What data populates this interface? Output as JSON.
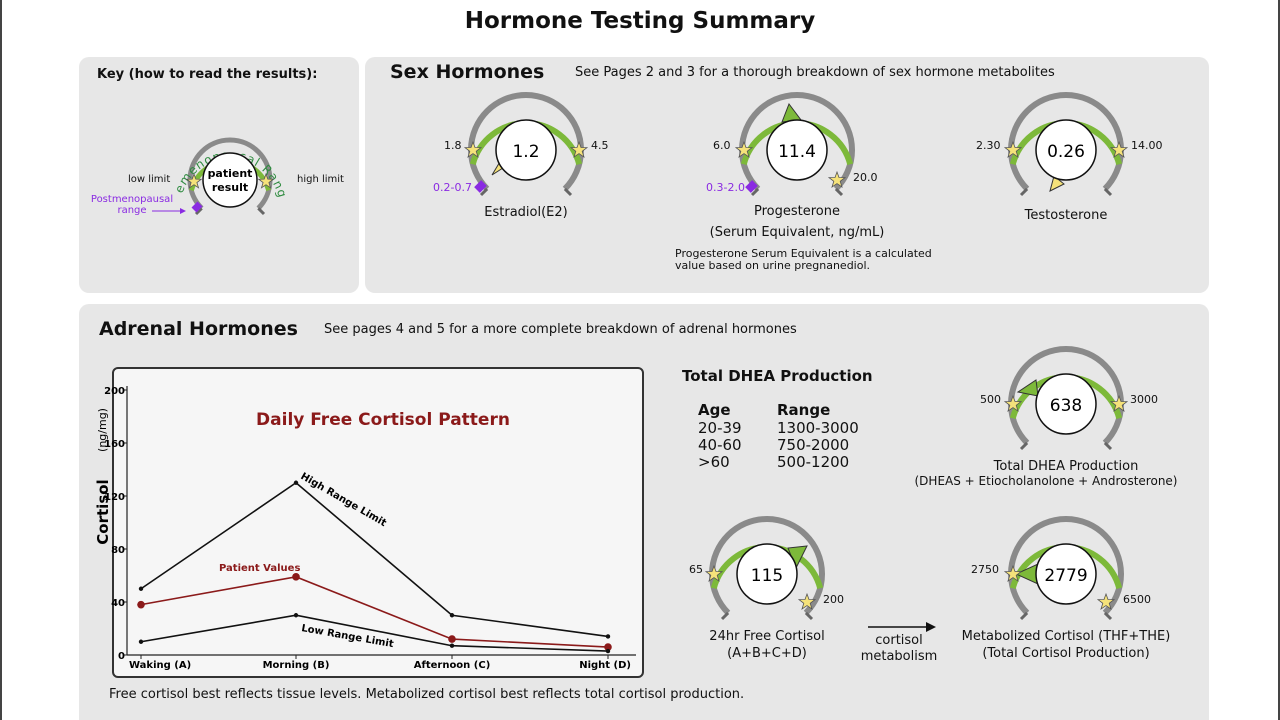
{
  "page": {
    "title": "Hormone Testing Summary"
  },
  "key": {
    "title": "Key (how to read the results):",
    "range_label": "Premenopausal Range",
    "center_line1": "patient",
    "center_line2": "result",
    "low_limit": "low limit",
    "high_limit": "high limit",
    "postmeno_line1": "Postmenopausal",
    "postmeno_line2": "range"
  },
  "sex": {
    "title": "Sex Hormones",
    "subtitle": "See Pages 2 and 3 for a thorough breakdown of sex hormone metabolites",
    "estradiol": {
      "value": "1.2",
      "low": "1.8",
      "high": "4.5",
      "postmeno": "0.2-0.7",
      "name": "Estradiol(E2)"
    },
    "progesterone": {
      "value": "11.4",
      "low": "6.0",
      "high": "20.0",
      "postmeno": "0.3-2.0",
      "name": "Progesterone",
      "unit": "(Serum Equivalent, ng/mL)",
      "note_line1": "Progesterone Serum Equivalent is a calculated",
      "note_line2": "value based on urine pregnanediol."
    },
    "testosterone": {
      "value": "0.26",
      "low": "2.30",
      "high": "14.00",
      "name": "Testosterone"
    }
  },
  "adrenal": {
    "title": "Adrenal Hormones",
    "subtitle": "See pages 4 and 5 for a more complete breakdown of adrenal hormones",
    "dhea_total": {
      "heading": "Total DHEA Production",
      "age_header": "Age",
      "range_header": "Range",
      "rows": [
        {
          "age": "20-39",
          "range": "1300-3000"
        },
        {
          "age": "40-60",
          "range": "750-2000"
        },
        {
          "age": ">60",
          "range": "500-1200"
        }
      ]
    },
    "dhea_gauge": {
      "value": "638",
      "low": "500",
      "high": "3000",
      "name": "Total DHEA Production",
      "sub": "(DHEAS + Etiocholanolone + Androsterone)"
    },
    "free_cortisol": {
      "value": "115",
      "low": "65",
      "high": "200",
      "name": "24hr Free Cortisol",
      "sub": "(A+B+C+D)"
    },
    "metabolism_line1": "cortisol",
    "metabolism_line2": "metabolism",
    "metab_cortisol": {
      "value": "2779",
      "low": "2750",
      "high": "6500",
      "name": "Metabolized Cortisol (THF+THE)",
      "sub": "(Total Cortisol Production)"
    },
    "footnote": "Free cortisol best reflects tissue levels. Metabolized cortisol best reflects total cortisol production."
  },
  "chart_data": {
    "type": "line",
    "title": "Daily Free Cortisol Pattern",
    "ylabel": "Cortisol",
    "yunit": "(ng/mg)",
    "ylim": [
      0,
      200
    ],
    "yticks": [
      "0",
      "40",
      "80",
      "120",
      "160",
      "200"
    ],
    "categories": [
      "Waking (A)",
      "Morning (B)",
      "Afternoon (C)",
      "Night (D)"
    ],
    "series": [
      {
        "name": "High Range Limit",
        "values": [
          50,
          130,
          30,
          14
        ],
        "color": "#111111"
      },
      {
        "name": "Patient Values",
        "values": [
          38,
          59,
          12,
          6
        ],
        "color": "#8b1a1a"
      },
      {
        "name": "Low Range Limit",
        "values": [
          10,
          30,
          7,
          3
        ],
        "color": "#111111"
      }
    ]
  },
  "colors": {
    "green": "#7db93a",
    "gray": "#8a8a8a",
    "purple": "#8a2be2",
    "star": "#f5e27a",
    "maroon": "#8b1a1a"
  }
}
